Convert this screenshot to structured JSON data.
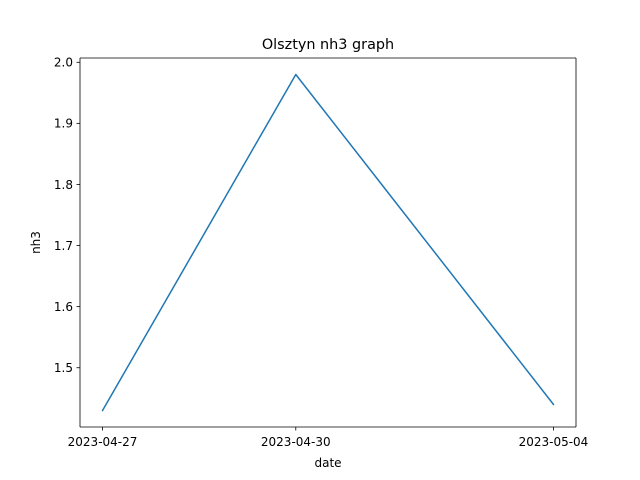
{
  "chart_data": {
    "type": "line",
    "title": "Olsztyn nh3 graph",
    "xlabel": "date",
    "ylabel": "nh3",
    "x": [
      "2023-04-27",
      "2023-04-30",
      "2023-05-04"
    ],
    "x_tick_labels": [
      "2023-04-27",
      "2023-04-30",
      "2023-05-04"
    ],
    "y_ticks": [
      1.5,
      1.6,
      1.7,
      1.8,
      1.9,
      2.0
    ],
    "y_tick_labels": [
      "1.5",
      "1.6",
      "1.7",
      "1.8",
      "1.9",
      "2.0"
    ],
    "ylim": [
      1.403,
      2.007
    ],
    "grid": false,
    "series": [
      {
        "values": [
          1.43,
          1.98,
          1.44
        ],
        "color": "#1f77b4"
      }
    ]
  }
}
